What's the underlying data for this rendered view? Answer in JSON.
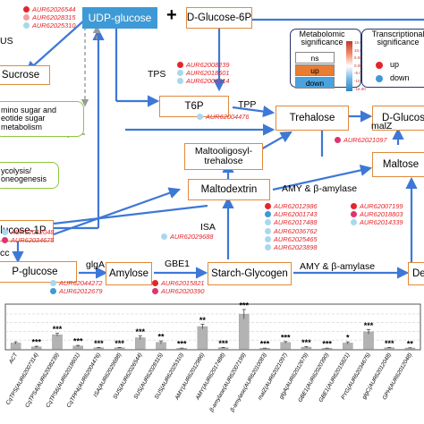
{
  "nodes": {
    "udp_glucose": "UDP-glucose",
    "d_glucose_6p": "D-Glucose-6P",
    "sucrose": "Sucrose",
    "amino_sugar": "mino sugar and\neotide sugar\nmetabolism",
    "glycolysis": "ycolysis/\noneogenesis",
    "glucose_1p": "lucose-1P",
    "adp_glucose": "P-glucose",
    "t6p": "T6P",
    "trehalose": "Trehalose",
    "d_glucose": "D-Glucos",
    "maltooligosyl": "Maltooligosyl-\ntrehalose",
    "maltodextrin": "Maltodextrin",
    "maltose": "Maltose",
    "amylose": "Amylose",
    "starch_glycogen": "Starch-Glycogen",
    "dextrin_partial": "De"
  },
  "plus_sign": "+",
  "enzymes": {
    "sus": "US",
    "tps": "TPS",
    "tpp": "TPP",
    "malz": "malZ",
    "amy_top": "AMY & β-amylase",
    "isa": "ISA",
    "glga": "glgA",
    "gbe1": "GBE1",
    "amy_bottom": "AMY & β-amylase",
    "cc": "cc"
  },
  "gene_groups": [
    {
      "id": "sus",
      "genes": [
        {
          "name": "AUR62026544",
          "color": "#e3262b"
        },
        {
          "name": "AUR62028315",
          "color": "#f2a0a3"
        },
        {
          "name": "AUR62025310",
          "color": "#a8d8ee"
        }
      ]
    },
    {
      "id": "tps",
      "genes": [
        {
          "name": "AUR62008239",
          "color": "#e3262b"
        },
        {
          "name": "AUR62018601",
          "color": "#a8d8ee"
        },
        {
          "name": "AUR62007314",
          "color": "#a8d8ee"
        }
      ]
    },
    {
      "id": "tpp",
      "genes": [
        {
          "name": "AUR62004476",
          "color": "#a8d8ee"
        }
      ]
    },
    {
      "id": "malz",
      "genes": [
        {
          "name": "AUR62021097",
          "color": "#e0336e"
        }
      ]
    },
    {
      "id": "amy_left",
      "genes": [
        {
          "name": "AUR62012986",
          "color": "#e3262b"
        },
        {
          "name": "AUR62001743",
          "color": "#3e9ad6"
        },
        {
          "name": "AUR62017488",
          "color": "#a8d8ee"
        },
        {
          "name": "AUR62036762",
          "color": "#a8d8ee"
        },
        {
          "name": "AUR62025465",
          "color": "#a8d8ee"
        },
        {
          "name": "AUR62023898",
          "color": "#a8d8ee"
        }
      ]
    },
    {
      "id": "amy_right",
      "genes": [
        {
          "name": "AUR62007199",
          "color": "#e3262b"
        },
        {
          "name": "AUR62018803",
          "color": "#e0336e"
        },
        {
          "name": "AUR62014339",
          "color": "#a8d8ee"
        }
      ]
    },
    {
      "id": "isa",
      "genes": [
        {
          "name": "AUR62029688",
          "color": "#a8d8ee"
        }
      ]
    },
    {
      "id": "cc",
      "genes": [
        {
          "name": "AUR62012048",
          "color": "#a8d8ee"
        },
        {
          "name": "AUR62034675",
          "color": "#e0336e"
        }
      ]
    },
    {
      "id": "glga",
      "genes": [
        {
          "name": "AUR62044272",
          "color": "#a8d8ee"
        },
        {
          "name": "AUR62012679",
          "color": "#3e9ad6"
        }
      ]
    },
    {
      "id": "gbe1",
      "genes": [
        {
          "name": "AUR62015821",
          "color": "#e3262b"
        },
        {
          "name": "AUR62020390",
          "color": "#e0336e"
        }
      ]
    }
  ],
  "legend": {
    "metabolomic_title": "Metabolomic\nsignificance",
    "ns": "ns",
    "up": "up",
    "down": "down",
    "up_color": "#e87d33",
    "down_color": "#4aa3df",
    "colorbar_ticks": [
      "15.00",
      "10.00",
      "5.00",
      "0.00",
      "-5.00",
      "-10.00",
      "-15.00"
    ],
    "transcriptional_title": "Transcriptional\nsignificance",
    "t_up": "up",
    "t_down": "down",
    "t_up_color": "#e3262b",
    "t_down_color": "#3e9ad6"
  },
  "chart_data": {
    "type": "bar",
    "categories": [
      "ACT",
      "CqTPS(AUR62007314)",
      "CqTPS4(AUR62008239)",
      "CqTPS6(AUR62018601)",
      "CqTPP4(AUR62004476)",
      "ISA(AUR62029688)",
      "SUS(AUR62026544)",
      "SUS(AUR62028315)",
      "SUS(AUR62025310)",
      "AMY(AUR62012986)",
      "AMY(AUR62017488)",
      "β-amylase(AUR62007199)",
      "β-amylase(AUR62010083)",
      "malZ(AUR62021097)",
      "glgA(AUR62012679)",
      "GBE1(AUR62020390)",
      "GBE1(AUR62015821)",
      "PYG(AUR62034675)",
      "glgC(AUR62012048)",
      "GPH(AUR62012048)"
    ],
    "values": [
      1.0,
      0.35,
      2.4,
      0.5,
      0.2,
      0.2,
      1.9,
      1.1,
      0.1,
      3.8,
      0.2,
      5.9,
      0.1,
      1.1,
      0.3,
      0.1,
      1.0,
      2.9,
      0.2,
      0.15
    ],
    "errors": [
      0.2,
      0.1,
      0.25,
      0.1,
      0.05,
      0.05,
      0.3,
      0.25,
      0.03,
      0.4,
      0.05,
      0.8,
      0.03,
      0.15,
      0.08,
      0.03,
      0.2,
      0.4,
      0.05,
      0.04
    ],
    "significance": [
      "",
      "***",
      "***",
      "***",
      "***",
      "***",
      "***",
      "**",
      "***",
      "**",
      "***",
      "***",
      "***",
      "***",
      "***",
      "***",
      "*",
      "***",
      "***",
      "**"
    ],
    "ylim": [
      0,
      7
    ],
    "grid": false,
    "bar_color": "#b3b3b3"
  }
}
